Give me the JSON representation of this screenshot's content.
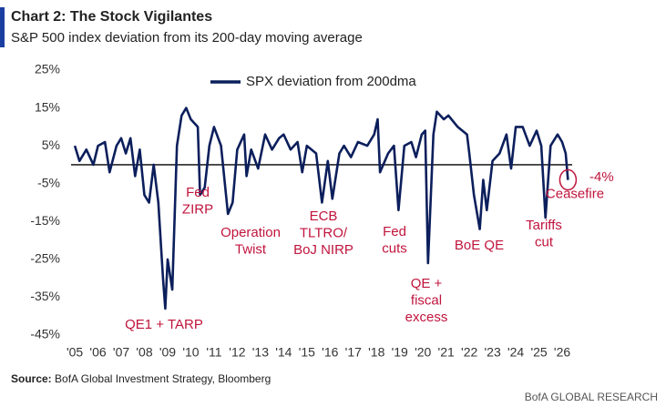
{
  "chart_data": {
    "type": "line",
    "title": "Chart 2: The Stock Vigilantes",
    "subtitle": "S&P 500 index deviation from its 200-day moving average",
    "source_label": "Source:",
    "source": "BofA Global Investment Strategy, Bloomberg",
    "branding": "BofA GLOBAL RESEARCH",
    "xlim": [
      2004.84,
      2026.43
    ],
    "ylim": [
      -45,
      25
    ],
    "yticks": [
      {
        "value": 25,
        "label": "25%"
      },
      {
        "value": 15,
        "label": "15%"
      },
      {
        "value": 5,
        "label": "5%"
      },
      {
        "value": -5,
        "label": "-5%"
      },
      {
        "value": -15,
        "label": "-15%"
      },
      {
        "value": -25,
        "label": "-25%"
      },
      {
        "value": -35,
        "label": "-35%"
      },
      {
        "value": -45,
        "label": "-45%"
      }
    ],
    "xticks": [
      {
        "value": 2005,
        "label": "'05"
      },
      {
        "value": 2006,
        "label": "'06"
      },
      {
        "value": 2007,
        "label": "'07"
      },
      {
        "value": 2008,
        "label": "'08"
      },
      {
        "value": 2009,
        "label": "'09"
      },
      {
        "value": 2010,
        "label": "'10"
      },
      {
        "value": 2011,
        "label": "'11"
      },
      {
        "value": 2012,
        "label": "'12"
      },
      {
        "value": 2013,
        "label": "'13"
      },
      {
        "value": 2014,
        "label": "'14"
      },
      {
        "value": 2015,
        "label": "'15"
      },
      {
        "value": 2016,
        "label": "'16"
      },
      {
        "value": 2017,
        "label": "'17"
      },
      {
        "value": 2018,
        "label": "'18"
      },
      {
        "value": 2019,
        "label": "'19"
      },
      {
        "value": 2020,
        "label": "'20"
      },
      {
        "value": 2021,
        "label": "'21"
      },
      {
        "value": 2022,
        "label": "'22"
      },
      {
        "value": 2023,
        "label": "'23"
      },
      {
        "value": 2024,
        "label": "'24"
      },
      {
        "value": 2025,
        "label": "'25"
      },
      {
        "value": 2026,
        "label": "'26"
      }
    ],
    "x": [
      2005.0,
      2005.2,
      2005.5,
      2005.8,
      2006.0,
      2006.3,
      2006.5,
      2006.8,
      2007.0,
      2007.2,
      2007.4,
      2007.6,
      2007.8,
      2008.0,
      2008.2,
      2008.4,
      2008.6,
      2008.8,
      2008.9,
      2009.0,
      2009.2,
      2009.4,
      2009.6,
      2009.8,
      2010.0,
      2010.3,
      2010.4,
      2010.6,
      2010.8,
      2011.0,
      2011.3,
      2011.6,
      2011.8,
      2012.0,
      2012.3,
      2012.4,
      2012.6,
      2012.9,
      2013.2,
      2013.5,
      2013.8,
      2014.0,
      2014.3,
      2014.6,
      2014.8,
      2015.0,
      2015.4,
      2015.65,
      2015.9,
      2016.1,
      2016.4,
      2016.6,
      2016.9,
      2017.2,
      2017.6,
      2017.9,
      2018.05,
      2018.15,
      2018.5,
      2018.75,
      2018.95,
      2019.2,
      2019.5,
      2019.7,
      2019.95,
      2020.1,
      2020.22,
      2020.45,
      2020.6,
      2020.9,
      2021.1,
      2021.5,
      2021.9,
      2022.0,
      2022.2,
      2022.45,
      2022.6,
      2022.75,
      2023.0,
      2023.3,
      2023.6,
      2023.8,
      2024.0,
      2024.3,
      2024.6,
      2024.9,
      2025.1,
      2025.28,
      2025.5,
      2025.8,
      2026.0,
      2026.15,
      2026.25
    ],
    "series": [
      {
        "name": "SPX deviation from 200dma",
        "color": "#0c1f5c",
        "values": [
          5,
          1,
          4,
          0,
          5,
          6,
          -2,
          5,
          7,
          3,
          7,
          -3,
          4,
          -8,
          -10,
          0,
          -10,
          -30,
          -38,
          -25,
          -33,
          5,
          13,
          15,
          12,
          10,
          -8,
          -6,
          5,
          10,
          5,
          -13,
          -10,
          4,
          8,
          -3,
          4,
          -1,
          8,
          4,
          7,
          8,
          4,
          6,
          -2,
          5,
          3,
          -10,
          1,
          -9,
          3,
          5,
          2,
          6,
          5,
          8,
          12,
          -2,
          3,
          5,
          -12,
          5,
          6,
          2,
          8,
          9,
          -26,
          8,
          14,
          12,
          13,
          10,
          8,
          3,
          -8,
          -17,
          -4,
          -12,
          1,
          3,
          8,
          -1,
          10,
          10,
          5,
          9,
          5,
          -14,
          5,
          8,
          6,
          3,
          -4
        ]
      }
    ],
    "annotations": [
      {
        "lines": [
          "QE1 + TARP"
        ]
      },
      {
        "lines": [
          "Fed",
          "ZIRP"
        ]
      },
      {
        "lines": [
          "Operation",
          "Twist"
        ]
      },
      {
        "lines": [
          "ECB",
          "TLTRO/",
          "BoJ NIRP"
        ]
      },
      {
        "lines": [
          "Fed",
          "cuts"
        ]
      },
      {
        "lines": [
          "QE +",
          "fiscal",
          "excess"
        ]
      },
      {
        "lines": [
          "BoE QE"
        ]
      },
      {
        "lines": [
          "Tariffs",
          "cut"
        ]
      },
      {
        "lines": [
          "-4%",
          "Ceasefire"
        ]
      }
    ]
  }
}
